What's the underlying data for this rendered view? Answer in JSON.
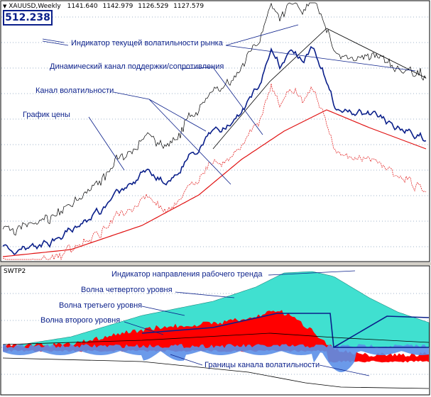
{
  "window": {
    "symbol_timeframe": "XAUUSD,Weekly",
    "ohlc": [
      "1141.640",
      "1142.979",
      "1126.529",
      "1127.579"
    ],
    "volatility_value": "512.238",
    "subwindow_name": "SWTP2"
  },
  "annotations": {
    "current_volatility": "Индикатор текущей волатильности рынка",
    "dynamic_channel": "Динамический канал поддержки/сопротивления",
    "volatility_channel": "Канал волатильности",
    "price_chart": "График цены",
    "trend_direction": "Индикатор направления рабочего тренда",
    "wave_fourth": "Волна четвертого уровня",
    "wave_third": "Волна третьего уровня",
    "wave_second": "Волна второго уровня",
    "channel_bounds": "Границы канала волатильности"
  },
  "colors": {
    "price": "#0a1f8a",
    "support": "#e01010",
    "lower_channel": "#e01010",
    "upper_channel": "#000000",
    "trend_fill": "#40e0d0",
    "wave_red": "#ff0000",
    "wave_blue": "#5b8fe8",
    "grid": "#9fb3c8",
    "annotation": "#0a1f8a"
  }
}
